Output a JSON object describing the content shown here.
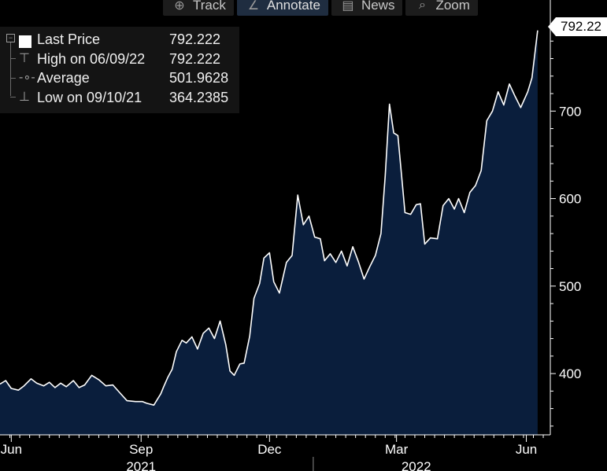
{
  "toolbar": {
    "items": [
      {
        "label": "Track",
        "icon": "crosshair-icon",
        "glyph": "⊕",
        "active": false
      },
      {
        "label": "Annotate",
        "icon": "pencil-icon",
        "glyph": "∠",
        "active": true
      },
      {
        "label": "News",
        "icon": "news-icon",
        "glyph": "▤",
        "active": false
      },
      {
        "label": "Zoom",
        "icon": "magnifier-icon",
        "glyph": "⌕",
        "active": false
      }
    ]
  },
  "legend": {
    "last": {
      "label": "Last Price",
      "value": "792.222"
    },
    "high": {
      "label": "High on 06/09/22",
      "value": "792.222"
    },
    "average": {
      "label": "Average",
      "value": "501.9628"
    },
    "low": {
      "label": "Low on 09/10/21",
      "value": "364.2385"
    }
  },
  "last_tag": "792.22",
  "colors": {
    "fill": "#0a1e3c",
    "line": "#ffffff",
    "axis": "#ffffff",
    "background": "#000000"
  },
  "chart_data": {
    "type": "area",
    "ylim": [
      330,
      800
    ],
    "y_ticks": [
      400,
      500,
      600,
      700
    ],
    "x_range": [
      "2021-05-24",
      "2022-06-18"
    ],
    "x_tick_labels": [
      {
        "label": "Jun",
        "date": "2021-06-01"
      },
      {
        "label": "Sep",
        "date": "2021-09-01"
      },
      {
        "label": "Dec",
        "date": "2021-12-01"
      },
      {
        "label": "Mar",
        "date": "2022-03-01"
      },
      {
        "label": "Jun",
        "date": "2022-06-01"
      }
    ],
    "year_labels": [
      {
        "label": "2021",
        "date": "2021-09-01"
      },
      {
        "label": "2022",
        "date": "2022-03-15"
      }
    ],
    "year_divider": "2022-01-01",
    "series": [
      {
        "points": [
          [
            "2021-05-24",
            388
          ],
          [
            "2021-05-28",
            392
          ],
          [
            "2021-06-01",
            383
          ],
          [
            "2021-06-06",
            381
          ],
          [
            "2021-06-10",
            386
          ],
          [
            "2021-06-15",
            394
          ],
          [
            "2021-06-19",
            389
          ],
          [
            "2021-06-24",
            386
          ],
          [
            "2021-06-28",
            390
          ],
          [
            "2021-07-02",
            384
          ],
          [
            "2021-07-06",
            389
          ],
          [
            "2021-07-10",
            385
          ],
          [
            "2021-07-15",
            392
          ],
          [
            "2021-07-19",
            384
          ],
          [
            "2021-07-23",
            387
          ],
          [
            "2021-07-28",
            398
          ],
          [
            "2021-08-02",
            393
          ],
          [
            "2021-08-07",
            386
          ],
          [
            "2021-08-12",
            387
          ],
          [
            "2021-08-17",
            378
          ],
          [
            "2021-08-22",
            369
          ],
          [
            "2021-08-28",
            368
          ],
          [
            "2021-09-02",
            368
          ],
          [
            "2021-09-05",
            366
          ],
          [
            "2021-09-10",
            364
          ],
          [
            "2021-09-15",
            377
          ],
          [
            "2021-09-17",
            385
          ],
          [
            "2021-09-20",
            396
          ],
          [
            "2021-09-23",
            405
          ],
          [
            "2021-09-26",
            425
          ],
          [
            "2021-09-30",
            438
          ],
          [
            "2021-10-03",
            435
          ],
          [
            "2021-10-07",
            442
          ],
          [
            "2021-10-11",
            428
          ],
          [
            "2021-10-15",
            446
          ],
          [
            "2021-10-19",
            452
          ],
          [
            "2021-10-23",
            440
          ],
          [
            "2021-10-27",
            460
          ],
          [
            "2021-10-31",
            433
          ],
          [
            "2021-11-03",
            403
          ],
          [
            "2021-11-06",
            398
          ],
          [
            "2021-11-10",
            411
          ],
          [
            "2021-11-13",
            412
          ],
          [
            "2021-11-17",
            443
          ],
          [
            "2021-11-20",
            486
          ],
          [
            "2021-11-24",
            503
          ],
          [
            "2021-11-27",
            532
          ],
          [
            "2021-12-01",
            538
          ],
          [
            "2021-12-04",
            505
          ],
          [
            "2021-12-08",
            492
          ],
          [
            "2021-12-13",
            527
          ],
          [
            "2021-12-17",
            535
          ],
          [
            "2021-12-21",
            604
          ],
          [
            "2021-12-25",
            570
          ],
          [
            "2021-12-29",
            580
          ],
          [
            "2022-01-02",
            556
          ],
          [
            "2022-01-06",
            554
          ],
          [
            "2022-01-09",
            529
          ],
          [
            "2022-01-13",
            537
          ],
          [
            "2022-01-17",
            527
          ],
          [
            "2022-01-21",
            540
          ],
          [
            "2022-01-25",
            523
          ],
          [
            "2022-01-29",
            545
          ],
          [
            "2022-02-02",
            528
          ],
          [
            "2022-02-06",
            508
          ],
          [
            "2022-02-10",
            522
          ],
          [
            "2022-02-14",
            535
          ],
          [
            "2022-02-18",
            560
          ],
          [
            "2022-02-21",
            626
          ],
          [
            "2022-02-24",
            708
          ],
          [
            "2022-02-27",
            675
          ],
          [
            "2022-03-02",
            672
          ],
          [
            "2022-03-07",
            584
          ],
          [
            "2022-03-11",
            582
          ],
          [
            "2022-03-15",
            593
          ],
          [
            "2022-03-18",
            594
          ],
          [
            "2022-03-21",
            548
          ],
          [
            "2022-03-25",
            555
          ],
          [
            "2022-03-30",
            554
          ],
          [
            "2022-04-03",
            592
          ],
          [
            "2022-04-07",
            600
          ],
          [
            "2022-04-11",
            588
          ],
          [
            "2022-04-14",
            600
          ],
          [
            "2022-04-18",
            584
          ],
          [
            "2022-04-22",
            607
          ],
          [
            "2022-04-26",
            615
          ],
          [
            "2022-04-30",
            632
          ],
          [
            "2022-05-04",
            689
          ],
          [
            "2022-05-08",
            700
          ],
          [
            "2022-05-12",
            722
          ],
          [
            "2022-05-16",
            707
          ],
          [
            "2022-05-20",
            731
          ],
          [
            "2022-05-24",
            717
          ],
          [
            "2022-05-28",
            704
          ],
          [
            "2022-06-02",
            722
          ],
          [
            "2022-06-05",
            738
          ],
          [
            "2022-06-09",
            792.222
          ]
        ]
      }
    ]
  }
}
